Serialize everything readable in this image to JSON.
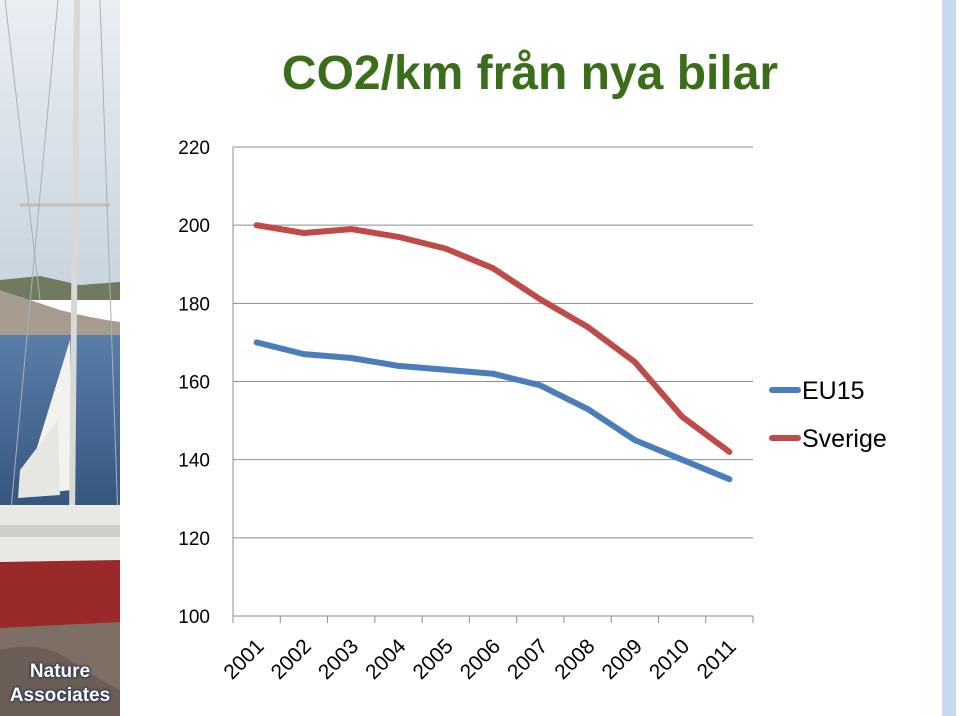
{
  "slide": {
    "title": "CO2/km från nya bilar",
    "brand": {
      "line1": "Nature",
      "line2": "Associates"
    },
    "accent_colors": {
      "title": "#3a6e1a",
      "side_bar": "#c6d9f1"
    }
  },
  "chart_data": {
    "type": "line",
    "title": "CO2/km från nya bilar",
    "x": [
      "2001",
      "2002",
      "2003",
      "2004",
      "2005",
      "2006",
      "2007",
      "2008",
      "2009",
      "2010",
      "2011"
    ],
    "series": [
      {
        "name": "EU15",
        "color": "#4a7ebb",
        "values": [
          170,
          167,
          166,
          164,
          163,
          162,
          159,
          153,
          145,
          140,
          135
        ]
      },
      {
        "name": "Sverige",
        "color": "#be4b48",
        "values": [
          200,
          198,
          199,
          197,
          194,
          189,
          181,
          174,
          165,
          151,
          142
        ]
      }
    ],
    "ylim": [
      100,
      220
    ],
    "yticks": [
      "100",
      "120",
      "140",
      "160",
      "180",
      "200",
      "220"
    ],
    "grid": true,
    "legend": "right"
  }
}
